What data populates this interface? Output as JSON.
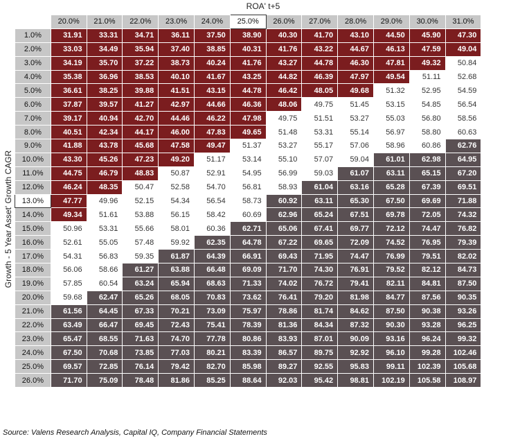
{
  "x_title": "ROA' t+5",
  "y_title": "Growth - 5 Year Asset' Growth CAGR",
  "source": "Source: Valens Research Analysis, Capital IQ, Company Financial Statements",
  "colors": {
    "red": "#7b1d1f",
    "white": "#ffffff",
    "gray": "#5a5053",
    "header": "#c7c7c7"
  },
  "chart_data": {
    "type": "heatmap",
    "xlabel": "ROA' t+5",
    "ylabel": "Growth - 5 Year Asset' Growth CAGR",
    "columns": [
      "20.0%",
      "21.0%",
      "22.0%",
      "23.0%",
      "24.0%",
      "25.0%",
      "26.0%",
      "27.0%",
      "28.0%",
      "29.0%",
      "30.0%",
      "31.0%"
    ],
    "rows": [
      "1.0%",
      "2.0%",
      "3.0%",
      "4.0%",
      "5.0%",
      "6.0%",
      "7.0%",
      "8.0%",
      "9.0%",
      "10.0%",
      "11.0%",
      "12.0%",
      "13.0%",
      "14.0%",
      "15.0%",
      "16.0%",
      "17.0%",
      "18.0%",
      "19.0%",
      "20.0%",
      "21.0%",
      "22.0%",
      "23.0%",
      "24.0%",
      "25.0%",
      "26.0%"
    ],
    "highlight_column": "25.0%",
    "highlight_row": "13.0%",
    "values": [
      [
        "31.91",
        "33.31",
        "34.71",
        "36.11",
        "37.50",
        "38.90",
        "40.30",
        "41.70",
        "43.10",
        "44.50",
        "45.90",
        "47.30"
      ],
      [
        "33.03",
        "34.49",
        "35.94",
        "37.40",
        "38.85",
        "40.31",
        "41.76",
        "43.22",
        "44.67",
        "46.13",
        "47.59",
        "49.04"
      ],
      [
        "34.19",
        "35.70",
        "37.22",
        "38.73",
        "40.24",
        "41.76",
        "43.27",
        "44.78",
        "46.30",
        "47.81",
        "49.32",
        "50.84"
      ],
      [
        "35.38",
        "36.96",
        "38.53",
        "40.10",
        "41.67",
        "43.25",
        "44.82",
        "46.39",
        "47.97",
        "49.54",
        "51.11",
        "52.68"
      ],
      [
        "36.61",
        "38.25",
        "39.88",
        "41.51",
        "43.15",
        "44.78",
        "46.42",
        "48.05",
        "49.68",
        "51.32",
        "52.95",
        "54.59"
      ],
      [
        "37.87",
        "39.57",
        "41.27",
        "42.97",
        "44.66",
        "46.36",
        "48.06",
        "49.75",
        "51.45",
        "53.15",
        "54.85",
        "56.54"
      ],
      [
        "39.17",
        "40.94",
        "42.70",
        "44.46",
        "46.22",
        "47.98",
        "49.75",
        "51.51",
        "53.27",
        "55.03",
        "56.80",
        "58.56"
      ],
      [
        "40.51",
        "42.34",
        "44.17",
        "46.00",
        "47.83",
        "49.65",
        "51.48",
        "53.31",
        "55.14",
        "56.97",
        "58.80",
        "60.63"
      ],
      [
        "41.88",
        "43.78",
        "45.68",
        "47.58",
        "49.47",
        "51.37",
        "53.27",
        "55.17",
        "57.06",
        "58.96",
        "60.86",
        "62.76"
      ],
      [
        "43.30",
        "45.26",
        "47.23",
        "49.20",
        "51.17",
        "53.14",
        "55.10",
        "57.07",
        "59.04",
        "61.01",
        "62.98",
        "64.95"
      ],
      [
        "44.75",
        "46.79",
        "48.83",
        "50.87",
        "52.91",
        "54.95",
        "56.99",
        "59.03",
        "61.07",
        "63.11",
        "65.15",
        "67.20"
      ],
      [
        "46.24",
        "48.35",
        "50.47",
        "52.58",
        "54.70",
        "56.81",
        "58.93",
        "61.04",
        "63.16",
        "65.28",
        "67.39",
        "69.51"
      ],
      [
        "47.77",
        "49.96",
        "52.15",
        "54.34",
        "56.54",
        "58.73",
        "60.92",
        "63.11",
        "65.30",
        "67.50",
        "69.69",
        "71.88"
      ],
      [
        "49.34",
        "51.61",
        "53.88",
        "56.15",
        "58.42",
        "60.69",
        "62.96",
        "65.24",
        "67.51",
        "69.78",
        "72.05",
        "74.32"
      ],
      [
        "50.96",
        "53.31",
        "55.66",
        "58.01",
        "60.36",
        "62.71",
        "65.06",
        "67.41",
        "69.77",
        "72.12",
        "74.47",
        "76.82"
      ],
      [
        "52.61",
        "55.05",
        "57.48",
        "59.92",
        "62.35",
        "64.78",
        "67.22",
        "69.65",
        "72.09",
        "74.52",
        "76.95",
        "79.39"
      ],
      [
        "54.31",
        "56.83",
        "59.35",
        "61.87",
        "64.39",
        "66.91",
        "69.43",
        "71.95",
        "74.47",
        "76.99",
        "79.51",
        "82.02"
      ],
      [
        "56.06",
        "58.66",
        "61.27",
        "63.88",
        "66.48",
        "69.09",
        "71.70",
        "74.30",
        "76.91",
        "79.52",
        "82.12",
        "84.73"
      ],
      [
        "57.85",
        "60.54",
        "63.24",
        "65.94",
        "68.63",
        "71.33",
        "74.02",
        "76.72",
        "79.41",
        "82.11",
        "84.81",
        "87.50"
      ],
      [
        "59.68",
        "62.47",
        "65.26",
        "68.05",
        "70.83",
        "73.62",
        "76.41",
        "79.20",
        "81.98",
        "84.77",
        "87.56",
        "90.35"
      ],
      [
        "61.56",
        "64.45",
        "67.33",
        "70.21",
        "73.09",
        "75.97",
        "78.86",
        "81.74",
        "84.62",
        "87.50",
        "90.38",
        "93.26"
      ],
      [
        "63.49",
        "66.47",
        "69.45",
        "72.43",
        "75.41",
        "78.39",
        "81.36",
        "84.34",
        "87.32",
        "90.30",
        "93.28",
        "96.25"
      ],
      [
        "65.47",
        "68.55",
        "71.63",
        "74.70",
        "77.78",
        "80.86",
        "83.93",
        "87.01",
        "90.09",
        "93.16",
        "96.24",
        "99.32"
      ],
      [
        "67.50",
        "70.68",
        "73.85",
        "77.03",
        "80.21",
        "83.39",
        "86.57",
        "89.75",
        "92.92",
        "96.10",
        "99.28",
        "102.46"
      ],
      [
        "69.57",
        "72.85",
        "76.14",
        "79.42",
        "82.70",
        "85.98",
        "89.27",
        "92.55",
        "95.83",
        "99.11",
        "102.39",
        "105.68"
      ],
      [
        "71.70",
        "75.09",
        "78.48",
        "81.86",
        "85.25",
        "88.64",
        "92.03",
        "95.42",
        "98.81",
        "102.19",
        "105.58",
        "108.97"
      ]
    ],
    "color_rule": {
      "red_below": 49.7,
      "gray_above": 60.9
    }
  }
}
